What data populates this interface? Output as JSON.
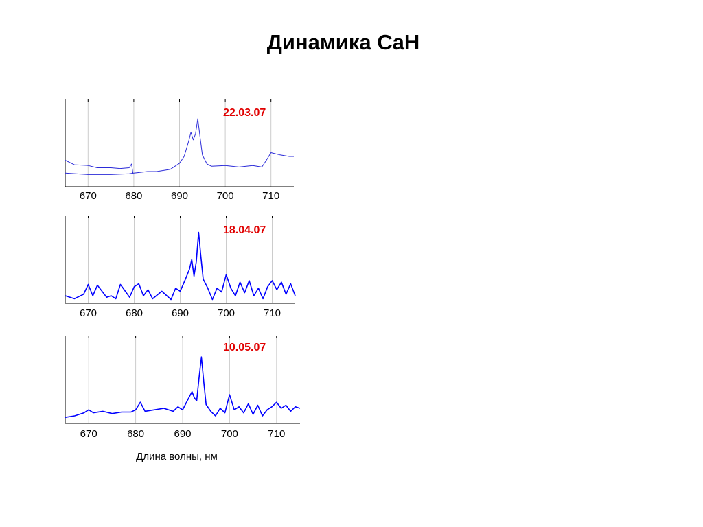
{
  "page": {
    "title": "Динамика CaH"
  },
  "chart_data": [
    {
      "type": "line",
      "title": "22.03.07",
      "xlabel": "Длина волны, нм",
      "ylabel": "",
      "xlim": [
        665,
        715
      ],
      "xticks": [
        670,
        680,
        690,
        700,
        710
      ],
      "grid": "vertical",
      "series": [
        {
          "color": "#2b2bd8",
          "x": [
            665,
            667,
            670,
            672,
            675,
            677,
            679,
            679.5,
            679.8
          ],
          "y": [
            0.35,
            0.29,
            0.28,
            0.25,
            0.25,
            0.24,
            0.25,
            0.3,
            0.18
          ]
        },
        {
          "color": "#2b2bd8",
          "x": [
            665,
            670,
            675,
            679,
            680,
            683,
            685,
            688,
            690,
            691,
            692,
            692.5,
            693,
            693.5,
            694,
            694.5,
            695,
            696,
            697,
            700,
            703,
            706,
            708,
            709,
            710,
            712,
            714,
            715
          ],
          "y": [
            0.18,
            0.16,
            0.16,
            0.17,
            0.18,
            0.2,
            0.2,
            0.23,
            0.31,
            0.4,
            0.6,
            0.72,
            0.62,
            0.7,
            0.9,
            0.65,
            0.42,
            0.3,
            0.27,
            0.28,
            0.26,
            0.28,
            0.26,
            0.35,
            0.45,
            0.42,
            0.4,
            0.4
          ]
        }
      ]
    },
    {
      "type": "line",
      "title": "18.04.07",
      "xlabel": "",
      "ylabel": "",
      "xlim": [
        665,
        715
      ],
      "xticks": [
        670,
        680,
        690,
        700,
        710
      ],
      "grid": "vertical",
      "series": [
        {
          "color": "#0000ff",
          "x": [
            665,
            667,
            669,
            670,
            671,
            672,
            674,
            675,
            676,
            677,
            679,
            680,
            681,
            682,
            683,
            684,
            686,
            688,
            689,
            690,
            691,
            692,
            692.5,
            693,
            693.5,
            694,
            694.5,
            695,
            696,
            697,
            698,
            699,
            700,
            701,
            702,
            703,
            704,
            705,
            706,
            707,
            708,
            709,
            710,
            711,
            712,
            713,
            714,
            715
          ],
          "y": [
            0.1,
            0.06,
            0.12,
            0.25,
            0.1,
            0.24,
            0.08,
            0.1,
            0.06,
            0.25,
            0.08,
            0.22,
            0.26,
            0.1,
            0.18,
            0.06,
            0.16,
            0.05,
            0.2,
            0.16,
            0.3,
            0.45,
            0.58,
            0.36,
            0.55,
            0.94,
            0.62,
            0.32,
            0.2,
            0.05,
            0.2,
            0.15,
            0.38,
            0.2,
            0.1,
            0.28,
            0.14,
            0.3,
            0.1,
            0.2,
            0.06,
            0.22,
            0.3,
            0.18,
            0.28,
            0.12,
            0.26,
            0.1
          ]
        }
      ]
    },
    {
      "type": "line",
      "title": "10.05.07",
      "xlabel": "",
      "ylabel": "",
      "xlim": [
        665,
        715
      ],
      "xticks": [
        670,
        680,
        690,
        700,
        710
      ],
      "grid": "vertical",
      "series": [
        {
          "color": "#0000ff",
          "x": [
            665,
            667,
            669,
            670,
            671,
            673,
            675,
            677,
            679,
            680,
            681,
            682,
            684,
            686,
            688,
            689,
            690,
            691,
            692,
            692.5,
            693,
            693.5,
            694,
            694.5,
            695,
            696,
            697,
            698,
            699,
            700,
            701,
            702,
            703,
            704,
            705,
            706,
            707,
            708,
            709,
            710,
            711,
            712,
            713,
            714,
            715
          ],
          "y": [
            0.08,
            0.1,
            0.14,
            0.18,
            0.14,
            0.16,
            0.13,
            0.15,
            0.15,
            0.18,
            0.28,
            0.16,
            0.18,
            0.2,
            0.16,
            0.22,
            0.18,
            0.3,
            0.42,
            0.34,
            0.3,
            0.6,
            0.88,
            0.55,
            0.25,
            0.16,
            0.1,
            0.2,
            0.14,
            0.38,
            0.18,
            0.22,
            0.14,
            0.26,
            0.12,
            0.24,
            0.1,
            0.18,
            0.22,
            0.28,
            0.2,
            0.24,
            0.16,
            0.22,
            0.2
          ]
        }
      ]
    }
  ]
}
